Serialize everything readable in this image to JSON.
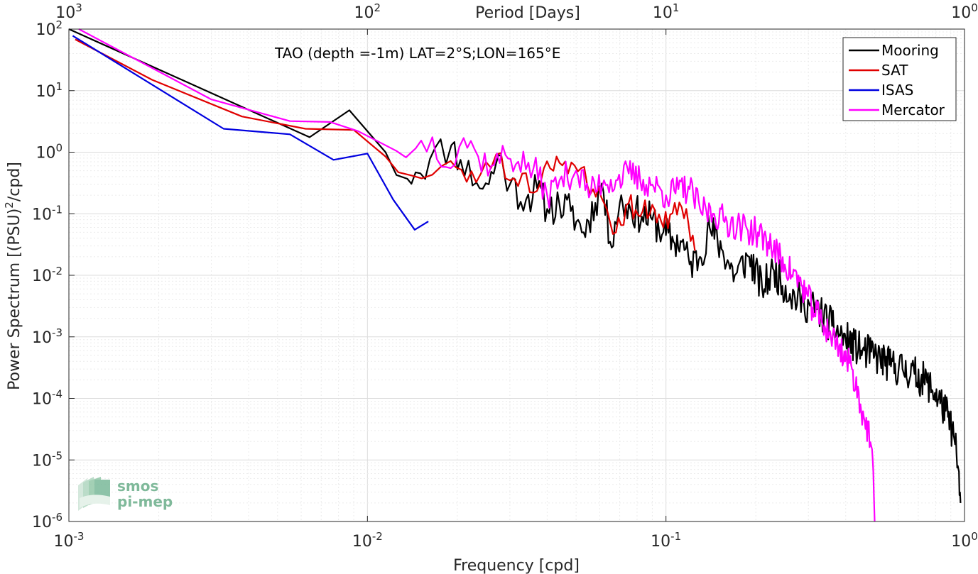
{
  "chart_data": {
    "type": "line",
    "xscale": "log",
    "yscale": "log",
    "xlim": [
      0.001,
      1
    ],
    "ylim": [
      1e-06,
      100
    ],
    "grid": true,
    "legend_placement": "top-right",
    "annotation": "TAO (depth =-1m) LAT=2°S;LON=165°E",
    "xlabel": "Frequency [cpd]",
    "ylabel_main": "Power Spectrum [(PSU)",
    "ylabel_sup": "2",
    "ylabel_tail": "/cpd]",
    "x2label": "Period [Days]",
    "x_ticks": [
      {
        "base": "10",
        "exp": "-3"
      },
      {
        "base": "10",
        "exp": "-2"
      },
      {
        "base": "10",
        "exp": "-1"
      },
      {
        "base": "10",
        "exp": "0"
      }
    ],
    "y_ticks": [
      {
        "base": "10",
        "exp": "-6"
      },
      {
        "base": "10",
        "exp": "-5"
      },
      {
        "base": "10",
        "exp": "-4"
      },
      {
        "base": "10",
        "exp": "-3"
      },
      {
        "base": "10",
        "exp": "-2"
      },
      {
        "base": "10",
        "exp": "-1"
      },
      {
        "base": "10",
        "exp": "0"
      },
      {
        "base": "10",
        "exp": "1"
      },
      {
        "base": "10",
        "exp": "2"
      }
    ],
    "x2_ticks": [
      {
        "base": "10",
        "exp": "3"
      },
      {
        "base": "10",
        "exp": "2"
      },
      {
        "base": "10",
        "exp": "1"
      },
      {
        "base": "10",
        "exp": "0"
      }
    ],
    "logo": {
      "line1": "smos",
      "line2": "pi-mep"
    },
    "series": [
      {
        "name": "Mooring",
        "color": "#000000",
        "style": "long",
        "x": [
          0.001,
          0.0064,
          0.0087,
          0.0115,
          0.0136,
          0.0145,
          0.0162,
          0.0191,
          0.0205,
          0.0232,
          0.0255,
          0.0275,
          0.03,
          0.034,
          0.037,
          0.04,
          0.044,
          0.048,
          0.053,
          0.058,
          0.061,
          0.065,
          0.07,
          0.076,
          0.083,
          0.09,
          0.098,
          0.106,
          0.113,
          0.12,
          0.13,
          0.14,
          0.155,
          0.17,
          0.19,
          0.21,
          0.23,
          0.26,
          0.29,
          0.32,
          0.36,
          0.4,
          0.45,
          0.5,
          0.56,
          0.62,
          0.68,
          0.75,
          0.82,
          0.88,
          0.92,
          0.95,
          0.97
        ],
        "y": [
          100,
          1.75,
          4.8,
          1.0,
          0.37,
          0.47,
          0.78,
          1.3,
          0.75,
          0.32,
          0.3,
          0.9,
          0.3,
          0.17,
          0.26,
          0.12,
          0.14,
          0.11,
          0.05,
          0.15,
          0.31,
          0.035,
          0.15,
          0.12,
          0.09,
          0.08,
          0.05,
          0.035,
          0.035,
          0.015,
          0.02,
          0.06,
          0.025,
          0.01,
          0.02,
          0.006,
          0.012,
          0.005,
          0.0035,
          0.0028,
          0.0015,
          0.0009,
          0.0006,
          0.0005,
          0.00035,
          0.0003,
          0.00025,
          0.00018,
          0.0001,
          5e-05,
          2.5e-05,
          8e-06,
          2e-06
        ],
        "jitter": 0.3,
        "seed": 11
      },
      {
        "name": "SAT",
        "color": "#e00000",
        "style": "short",
        "x": [
          0.00105,
          0.0019,
          0.0038,
          0.0062,
          0.009,
          0.0115,
          0.014,
          0.0165,
          0.019,
          0.0215,
          0.024,
          0.027,
          0.03,
          0.033,
          0.036,
          0.039,
          0.043,
          0.047,
          0.052,
          0.057,
          0.062,
          0.068,
          0.075,
          0.082,
          0.09,
          0.098,
          0.107,
          0.117,
          0.125
        ],
        "y": [
          68,
          15,
          3.8,
          2.4,
          2.3,
          0.85,
          0.42,
          0.43,
          0.72,
          0.33,
          0.45,
          0.92,
          0.35,
          0.45,
          0.22,
          0.55,
          0.85,
          0.45,
          0.55,
          0.25,
          0.15,
          0.05,
          0.15,
          0.09,
          0.14,
          0.06,
          0.15,
          0.12,
          0.025
        ],
        "jitter": 0.2,
        "seed": 23
      },
      {
        "name": "ISAS",
        "color": "#0000e0",
        "style": "none",
        "x": [
          0.00103,
          0.0033,
          0.0055,
          0.0077,
          0.01,
          0.0122,
          0.0144,
          0.016
        ],
        "y": [
          78,
          2.4,
          1.95,
          0.75,
          0.95,
          0.17,
          0.055,
          0.075
        ],
        "jitter": 0,
        "seed": 1
      },
      {
        "name": "Mercator",
        "color": "#ff00ff",
        "style": "long",
        "x": [
          0.00108,
          0.003,
          0.0055,
          0.0075,
          0.0093,
          0.0125,
          0.0145,
          0.0165,
          0.019,
          0.021,
          0.0235,
          0.026,
          0.029,
          0.032,
          0.036,
          0.04,
          0.044,
          0.05,
          0.056,
          0.062,
          0.068,
          0.075,
          0.082,
          0.09,
          0.1,
          0.11,
          0.12,
          0.13,
          0.145,
          0.16,
          0.18,
          0.2,
          0.22,
          0.25,
          0.28,
          0.31,
          0.34,
          0.38,
          0.42,
          0.46,
          0.49,
          0.5
        ],
        "y": [
          100,
          7.2,
          3.2,
          3.1,
          2.2,
          1.05,
          1.15,
          1.75,
          0.55,
          1.7,
          0.85,
          0.6,
          0.9,
          0.7,
          0.55,
          0.2,
          0.35,
          0.5,
          0.22,
          0.35,
          0.35,
          0.45,
          0.35,
          0.3,
          0.2,
          0.25,
          0.25,
          0.12,
          0.1,
          0.075,
          0.06,
          0.05,
          0.035,
          0.015,
          0.008,
          0.003,
          0.0015,
          0.0007,
          0.0003,
          5e-05,
          1.5e-05,
          9e-07
        ],
        "jitter": 0.25,
        "seed": 37
      }
    ]
  }
}
